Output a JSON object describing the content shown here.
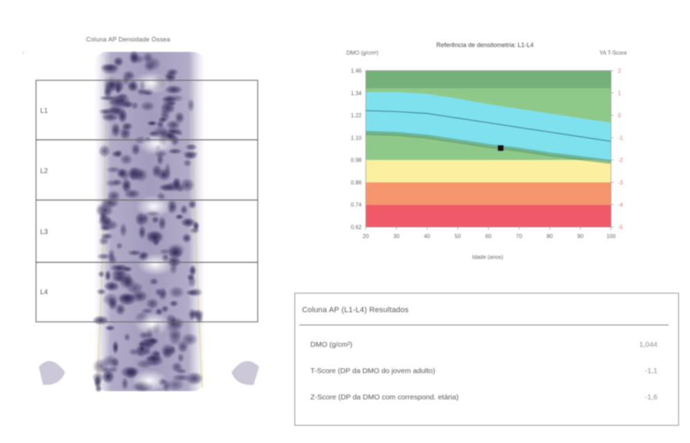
{
  "scan": {
    "title": "Coluna AP Densidade Óssea",
    "vertebrae": [
      "L1",
      "L2",
      "L3",
      "L4"
    ]
  },
  "chart": {
    "title": "Referência de densitometria: L1-L4",
    "y_left_label": "DMO (g/cm²)",
    "y_right_label": "YA T-Score",
    "x_axis_label": "Idade (anos)"
  },
  "chart_data": {
    "type": "area",
    "x": [
      20,
      30,
      40,
      50,
      60,
      70,
      80,
      90,
      100
    ],
    "xlim": [
      20,
      100
    ],
    "ylim": [
      0.62,
      1.46
    ],
    "y_ticks": [
      1.46,
      1.34,
      1.22,
      1.1,
      0.98,
      0.86,
      0.74,
      0.62
    ],
    "y2_ticks": [
      2,
      1,
      0,
      -1,
      -2,
      -3,
      -4,
      -5
    ],
    "bands": [
      {
        "name": "band-red",
        "color": "#f05a68",
        "from": 0.62,
        "to": 0.74
      },
      {
        "name": "band-orange",
        "color": "#f6966e",
        "from": 0.74,
        "to": 0.86
      },
      {
        "name": "band-yellow",
        "color": "#fbf0a0",
        "from": 0.86,
        "to": 0.98
      },
      {
        "name": "band-green",
        "color": "#8fc98a",
        "from": 0.98,
        "to": 1.46
      }
    ],
    "reference": {
      "color": "#7fe0ee",
      "upper": [
        1.345,
        1.345,
        1.335,
        1.31,
        1.28,
        1.255,
        1.23,
        1.205,
        1.18
      ],
      "mean": [
        1.245,
        1.24,
        1.23,
        1.205,
        1.18,
        1.155,
        1.13,
        1.105,
        1.08
      ],
      "lower": [
        1.125,
        1.12,
        1.105,
        1.08,
        1.055,
        1.035,
        1.01,
        0.99,
        0.97
      ]
    },
    "patient": {
      "age": 64,
      "bmd": 1.044
    },
    "grid": false
  },
  "results": {
    "title": "Coluna AP (L1-L4) Resultados",
    "rows": [
      {
        "label": "DMO (g/cm²)",
        "value": "1,044"
      },
      {
        "label": "T-Score (DP da DMO do jovem adulto)",
        "value": "-1,1"
      },
      {
        "label": "Z-Score (DP da DMO com correspond. etária)",
        "value": "-1,6"
      }
    ]
  },
  "colors": {
    "green_dark": "#5f9a67",
    "green": "#8fc98a",
    "cyan": "#7fe0ee",
    "yellow": "#fbf0a0",
    "orange": "#f6966e",
    "red": "#f05a68"
  }
}
